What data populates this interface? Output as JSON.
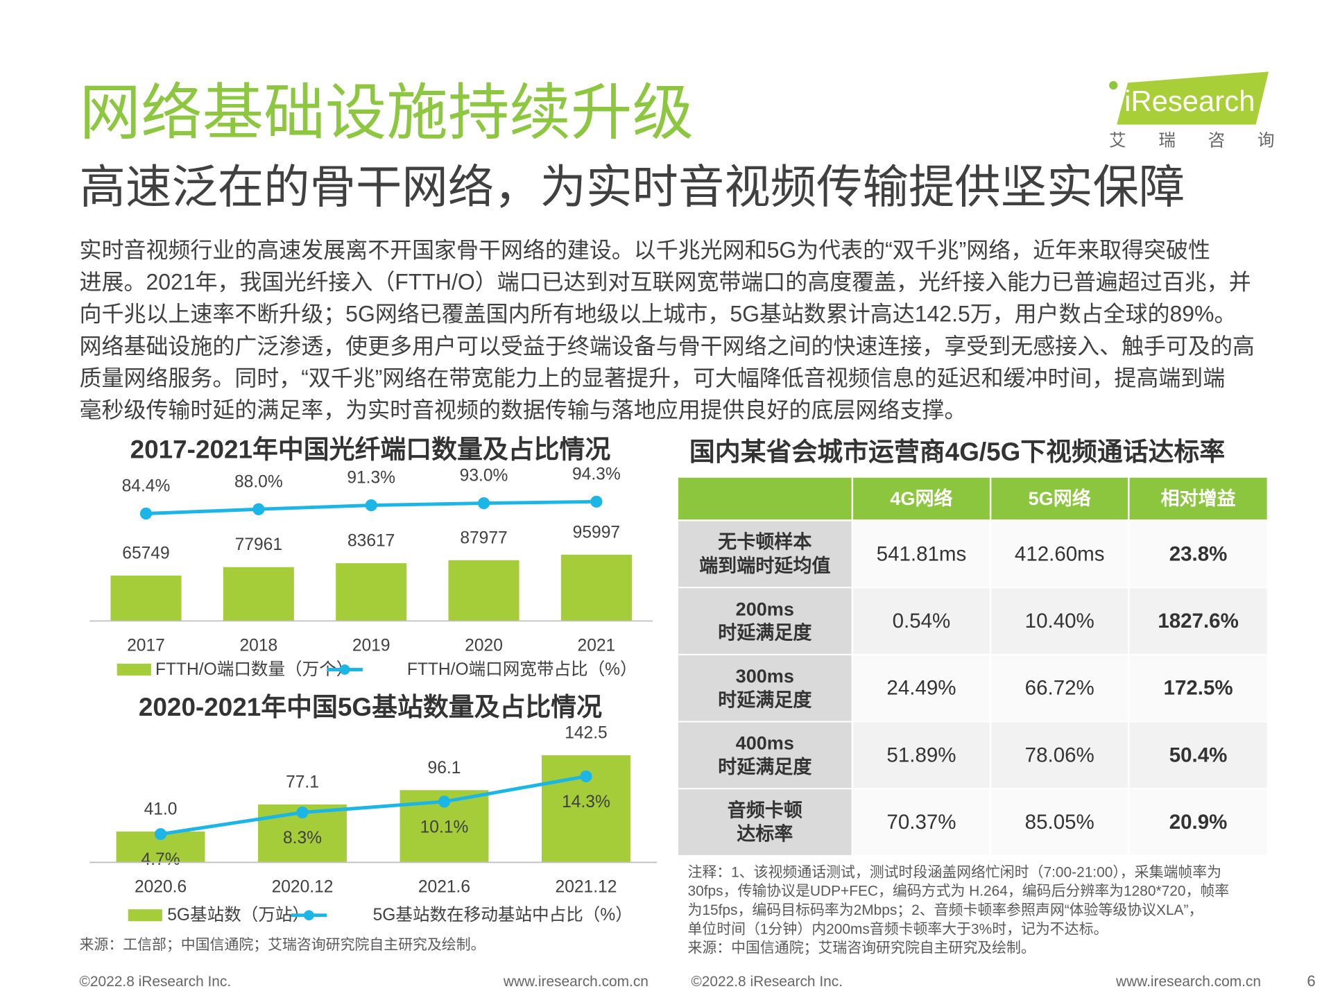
{
  "header": {
    "title": "网络基础设施持续升级",
    "subtitle": "高速泛在的骨干网络，为实时音视频传输提供坚实保障"
  },
  "logo": {
    "name": "iResearch",
    "cn": "艾瑞咨询"
  },
  "body": [
    "实时音视频行业的高速发展离不开国家骨干网络的建设。以千兆光网和5G为代表的“双千兆”网络，近年来取得突破性",
    "进展。2021年，我国光纤接入（FTTH/O）端口已达到对互联网宽带端口的高度覆盖，光纤接入能力已普遍超过百兆，并",
    "向千兆以上速率不断升级；5G网络已覆盖国内所有地级以上城市，5G基站数累计高达142.5万，用户数占全球的89%。",
    "网络基础设施的广泛渗透，使更多用户可以受益于终端设备与骨干网络之间的快速连接，享受到无感接入、触手可及的高",
    "质量网络服务。同时，“双千兆”网络在带宽能力上的显著提升，可大幅降低音视频信息的延迟和缓冲时间，提高端到端",
    "毫秒级传输时延的满足率，为实时音视频的数据传输与落地应用提供良好的底层网络支撑。"
  ],
  "chart_data": [
    {
      "type": "bar",
      "title": "2017-2021年中国光纤端口数量及占比情况",
      "categories": [
        "2017",
        "2018",
        "2019",
        "2020",
        "2021"
      ],
      "series": [
        {
          "name": "FTTH/O端口数量（万个）",
          "type": "bar",
          "color": "#a5cd39",
          "values": [
            65749,
            77961,
            83617,
            87977,
            95997
          ]
        },
        {
          "name": "FTTH/O端口网宽带占比（%）",
          "type": "line",
          "axis": "y2",
          "color": "#1bb5e6",
          "values": [
            84.4,
            88.0,
            91.3,
            93.0,
            94.3
          ],
          "value_labels": [
            "84.4%",
            "88.0%",
            "91.3%",
            "93.0%",
            "94.3%"
          ]
        }
      ],
      "ylim": [
        0,
        200000
      ],
      "y2lim": [
        -5,
        110
      ]
    },
    {
      "type": "bar",
      "title": "2020-2021年中国5G基站数量及占比情况",
      "categories": [
        "2020.6",
        "2020.12",
        "2021.6",
        "2021.12"
      ],
      "series": [
        {
          "name": "5G基站数（万站）",
          "type": "bar",
          "color": "#a5cd39",
          "values": [
            41.0,
            77.1,
            96.1,
            142.5
          ],
          "value_labels": [
            "41.0",
            "77.1",
            "96.1",
            "142.5"
          ]
        },
        {
          "name": "5G基站数在移动基站中占比（%）",
          "type": "line",
          "axis": "y2",
          "color": "#1bb5e6",
          "values": [
            4.7,
            8.3,
            10.1,
            14.3
          ],
          "value_labels": [
            "4.7%",
            "8.3%",
            "10.1%",
            "14.3%"
          ]
        }
      ],
      "ylim": [
        0,
        160
      ],
      "y2lim": [
        0,
        20
      ]
    }
  ],
  "left_source": "来源：工信部；中国信通院；艾瑞咨询研究院自主研究及绘制。",
  "table": {
    "title": "国内某省会城市运营商4G/5G下视频通话达标率",
    "columns": [
      "4G网络",
      "5G网络",
      "相对增益"
    ],
    "rows": [
      {
        "label": [
          "无卡顿样本",
          "端到端时延均值"
        ],
        "cells": [
          "541.81ms",
          "412.60ms",
          "23.8%"
        ]
      },
      {
        "label": [
          "200ms",
          "时延满足度"
        ],
        "cells": [
          "0.54%",
          "10.40%",
          "1827.6%"
        ]
      },
      {
        "label": [
          "300ms",
          "时延满足度"
        ],
        "cells": [
          "24.49%",
          "66.72%",
          "172.5%"
        ]
      },
      {
        "label": [
          "400ms",
          "时延满足度"
        ],
        "cells": [
          "51.89%",
          "78.06%",
          "50.4%"
        ]
      },
      {
        "label": [
          "音频卡顿",
          "达标率"
        ],
        "cells": [
          "70.37%",
          "85.05%",
          "20.9%"
        ]
      }
    ]
  },
  "notes": [
    "注释：1、该视频通话测试，测试时段涵盖网络忙闲时（7:00-21:00），采集端帧率为",
    "30fps，传输协议是UDP+FEC，编码方式为 H.264，编码后分辨率为1280*720，帧率",
    "为15fps，编码目标码率为2Mbps；2、音频卡顿率参照声网“体验等级协议XLA”，",
    "单位时间（1分钟）内200ms音频卡顿率大于3%时，记为不达标。",
    "来源：中国信通院；艾瑞咨询研究院自主研究及绘制。"
  ],
  "footer": {
    "left": "©2022.8 iResearch Inc.",
    "url": "www.iresearch.com.cn",
    "left2": "©2022.8 iResearch Inc.",
    "url2": "www.iresearch.com.cn",
    "page": "6"
  }
}
